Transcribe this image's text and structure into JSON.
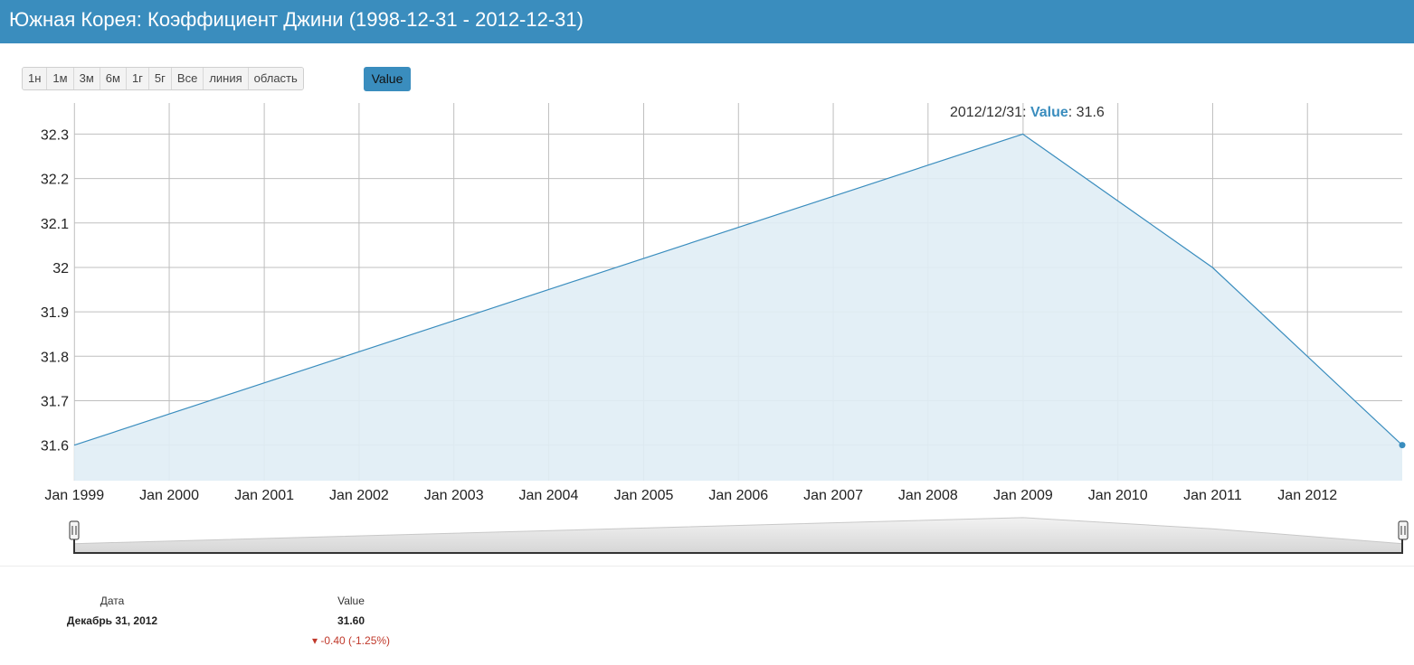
{
  "title": "Южная Корея: Коэффициент Джини (1998-12-31 - 2012-12-31)",
  "range_buttons": [
    "1н",
    "1м",
    "3м",
    "6м",
    "1г",
    "5г",
    "Все",
    "линия",
    "область"
  ],
  "series_button": "Value",
  "tooltip": {
    "date": "2012/12/31",
    "series": "Value",
    "value": "31.6"
  },
  "summary": {
    "date_header": "Дата",
    "date_value": "Декабрь 31, 2012",
    "value_header": "Value",
    "value": "31.60",
    "change": "-0.40 (-1.25%)"
  },
  "colors": {
    "accent": "#3a8dbe",
    "area_fill": "#e0edf5",
    "line": "#3a8dbe",
    "negative": "#c0392b"
  },
  "chart_data": {
    "type": "area",
    "x": [
      "1998-12-31",
      "2008-12-31",
      "2010-12-31",
      "2012-12-31"
    ],
    "series": [
      {
        "name": "Value",
        "values": [
          31.6,
          32.3,
          32.0,
          31.6
        ]
      }
    ],
    "x_tick_labels": [
      "Jan 1999",
      "Jan 2000",
      "Jan 2001",
      "Jan 2002",
      "Jan 2003",
      "Jan 2004",
      "Jan 2005",
      "Jan 2006",
      "Jan 2007",
      "Jan 2008",
      "Jan 2009",
      "Jan 2010",
      "Jan 2011",
      "Jan 2012"
    ],
    "y_ticks": [
      31.6,
      31.7,
      31.8,
      31.9,
      32,
      32.1,
      32.2,
      32.3
    ],
    "xlim": [
      "1998-12-31",
      "2012-12-31"
    ],
    "ylim": [
      31.52,
      32.37
    ],
    "grid": true
  }
}
